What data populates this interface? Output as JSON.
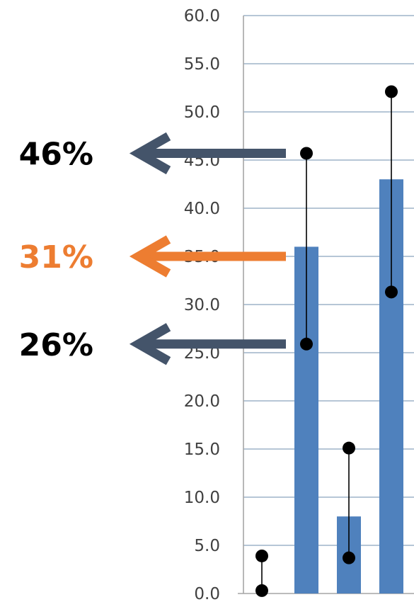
{
  "chart_data": {
    "type": "bar",
    "ylim": [
      0,
      60
    ],
    "yticks": [
      "0.0",
      "5.0",
      "10.0",
      "15.0",
      "20.0",
      "25.0",
      "30.0",
      "35.0",
      "40.0",
      "45.0",
      "50.0",
      "55.0",
      "60.0"
    ],
    "grid": true,
    "bar_color": "#4F81BD",
    "series": [
      {
        "values": [
          0,
          36,
          8,
          43
        ]
      }
    ],
    "ranges": [
      {
        "low": 0.3,
        "high": 3.9
      },
      {
        "low": 25.9,
        "high": 45.7
      },
      {
        "low": 3.7,
        "high": 15.1
      },
      {
        "low": 31.3,
        "high": 52.1
      }
    ],
    "annotations": [
      {
        "label": "46%",
        "y": 45.7,
        "color": "#000000",
        "arrow_color": "#44546A"
      },
      {
        "label": "31%",
        "y": 35.0,
        "color": "#ED7D31",
        "arrow_color": "#ED7D31"
      },
      {
        "label": "26%",
        "y": 25.9,
        "color": "#000000",
        "arrow_color": "#44546A"
      }
    ]
  }
}
